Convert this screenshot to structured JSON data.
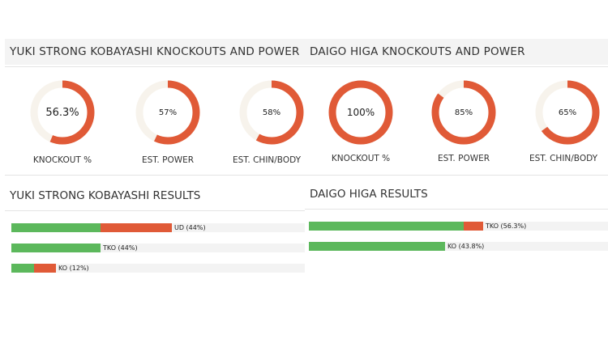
{
  "colors": {
    "accent": "#e05a37",
    "track": "#f7f3ec",
    "green": "#5cb85c",
    "bar_bg": "#f3f3f3"
  },
  "chart_data": [
    {
      "type": "pie",
      "title": "YUKI STRONG KOBAYASHI KNOCKOUTS AND POWER",
      "categories": [
        "KNOCKOUT %",
        "EST. POWER",
        "EST. CHIN/BODY"
      ],
      "values": [
        56.3,
        57,
        58
      ],
      "display": [
        "56.3%",
        "57%",
        "58%"
      ]
    },
    {
      "type": "bar",
      "title": "YUKI STRONG KOBAYASHI RESULTS",
      "categories": [
        "UD",
        "TKO",
        "KO"
      ],
      "values": [
        44,
        44,
        12
      ],
      "labels": [
        "UD (44%)",
        "TKO (44%)",
        "KO (12%)"
      ]
    },
    {
      "type": "pie",
      "title": "DAIGO HIGA KNOCKOUTS AND POWER",
      "categories": [
        "KNOCKOUT %",
        "EST. POWER",
        "EST. CHIN/BODY"
      ],
      "values": [
        100,
        85,
        65
      ],
      "display": [
        "100%",
        "85%",
        "65%"
      ]
    },
    {
      "type": "bar",
      "title": "DAIGO HIGA RESULTS",
      "categories": [
        "TKO",
        "KO"
      ],
      "values": [
        56.3,
        43.8
      ],
      "labels": [
        "TKO (56.3%)",
        "KO (43.8%)"
      ]
    }
  ]
}
